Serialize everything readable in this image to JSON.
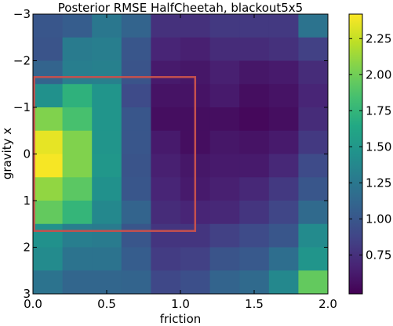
{
  "chart_data": {
    "type": "heatmap",
    "title": "Posterior RMSE HalfCheetah, blackout5x5",
    "xlabel": "friction",
    "ylabel": "gravity x",
    "xlim": [
      0.0,
      2.0
    ],
    "ylim": [
      3,
      -3
    ],
    "x_ticks": [
      "0.0",
      "0.5",
      "1.0",
      "1.5",
      "2.0"
    ],
    "x_tick_values": [
      0.0,
      0.5,
      1.0,
      1.5,
      2.0
    ],
    "y_ticks": [
      "−3",
      "−2",
      "−1",
      "0",
      "1",
      "2",
      "3"
    ],
    "y_tick_values": [
      -3,
      -2,
      -1,
      0,
      1,
      2,
      3
    ],
    "colorbar": {
      "colormap": "viridis",
      "vmin": 0.48,
      "vmax": 2.42,
      "ticks": [
        "0.75",
        "1.00",
        "1.25",
        "1.50",
        "1.75",
        "2.00",
        "2.25"
      ],
      "tick_values": [
        0.75,
        1.0,
        1.25,
        1.5,
        1.75,
        2.0,
        2.25
      ]
    },
    "x_edges": [
      0.0,
      0.2,
      0.4,
      0.6,
      0.8,
      1.0,
      1.2,
      1.4,
      1.6,
      1.8,
      2.0
    ],
    "y_edges": [
      -3.0,
      -2.5,
      -2.0,
      -1.5,
      -1.0,
      -0.5,
      0.0,
      0.5,
      1.0,
      1.5,
      2.0,
      2.5,
      3.0
    ],
    "values": [
      [
        1.0,
        1.05,
        1.25,
        1.1,
        0.75,
        0.75,
        0.8,
        0.8,
        0.8,
        1.22
      ],
      [
        0.98,
        1.28,
        1.3,
        1.0,
        0.68,
        0.65,
        0.72,
        0.72,
        0.75,
        0.85
      ],
      [
        1.1,
        1.3,
        1.32,
        0.98,
        0.62,
        0.6,
        0.65,
        0.6,
        0.62,
        0.72
      ],
      [
        1.45,
        1.72,
        1.48,
        0.92,
        0.58,
        0.58,
        0.62,
        0.55,
        0.58,
        0.68
      ],
      [
        2.05,
        1.85,
        1.48,
        1.0,
        0.55,
        0.55,
        0.55,
        0.52,
        0.55,
        0.72
      ],
      [
        2.35,
        2.05,
        1.48,
        1.0,
        0.62,
        0.55,
        0.6,
        0.58,
        0.62,
        0.8
      ],
      [
        2.4,
        2.05,
        1.5,
        0.98,
        0.65,
        0.6,
        0.62,
        0.62,
        0.7,
        0.92
      ],
      [
        2.1,
        1.92,
        1.45,
        1.0,
        0.68,
        0.62,
        0.65,
        0.7,
        0.8,
        1.0
      ],
      [
        1.95,
        1.75,
        1.38,
        1.1,
        0.72,
        0.68,
        0.7,
        0.78,
        0.88,
        1.15
      ],
      [
        1.45,
        1.3,
        1.28,
        1.0,
        0.78,
        0.78,
        0.85,
        0.92,
        1.0,
        1.4
      ],
      [
        1.4,
        1.22,
        1.22,
        1.05,
        0.82,
        0.85,
        0.98,
        1.02,
        1.18,
        1.48
      ],
      [
        1.22,
        1.12,
        1.12,
        1.1,
        0.9,
        0.95,
        1.1,
        1.15,
        1.38,
        1.95
      ]
    ],
    "highlight_region": {
      "color": "#c5504e",
      "x_range": [
        0.0,
        1.1
      ],
      "y_range": [
        -1.65,
        1.65
      ]
    },
    "grid": false,
    "legend": "colorbar-right"
  }
}
